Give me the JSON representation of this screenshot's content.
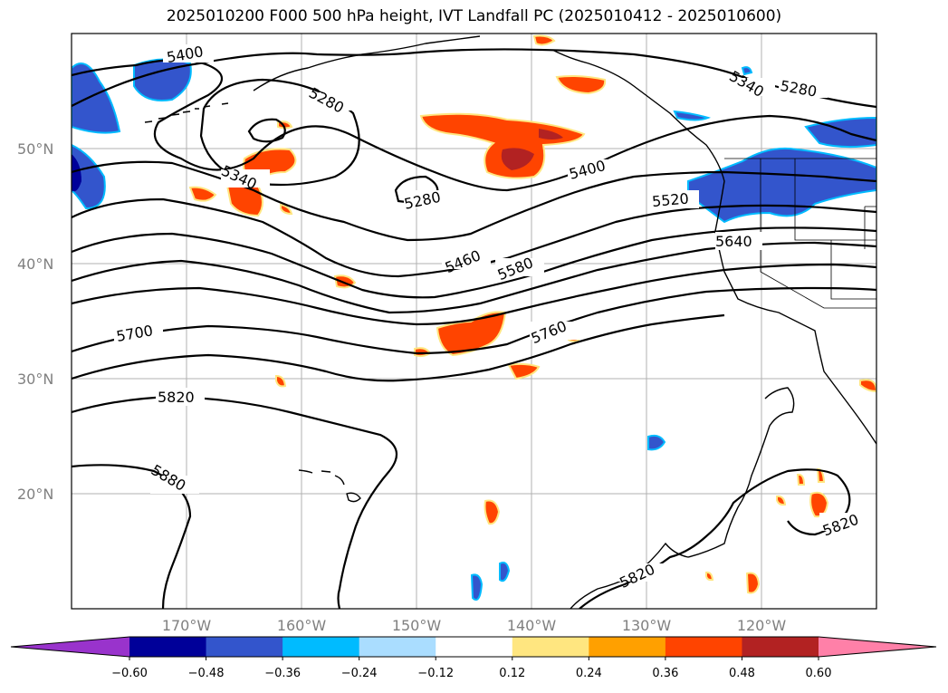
{
  "title": "2025010200 F000 500 hPa height, IVT Landfall PC (2025010412 - 2025010600)",
  "map": {
    "lon_range": [
      -180,
      -110
    ],
    "lat_range": [
      10,
      60
    ],
    "lat_labels": [
      "50°N",
      "40°N",
      "30°N",
      "20°N"
    ],
    "lon_labels": [
      "170°W",
      "160°W",
      "150°W",
      "140°W",
      "130°W",
      "120°W"
    ],
    "contour_labels": [
      "5400",
      "5280",
      "5340",
      "5280",
      "5400",
      "5520",
      "5460",
      "5580",
      "5640",
      "5700",
      "5760",
      "5820",
      "5880",
      "5820",
      "5820",
      "5340",
      "5280"
    ],
    "grid": true,
    "contour_color": "#000000"
  },
  "colorbar": {
    "colors": [
      "#9933cc",
      "#000099",
      "#3355cc",
      "#00bbff",
      "#aaddff",
      "#ffffff",
      "#ffe680",
      "#ffa000",
      "#ff4400",
      "#b22222",
      "#ff80a8"
    ],
    "tick_labels": [
      "−0.60",
      "−0.48",
      "−0.36",
      "−0.24",
      "−0.12",
      "0.12",
      "0.24",
      "0.36",
      "0.48",
      "0.60"
    ]
  }
}
